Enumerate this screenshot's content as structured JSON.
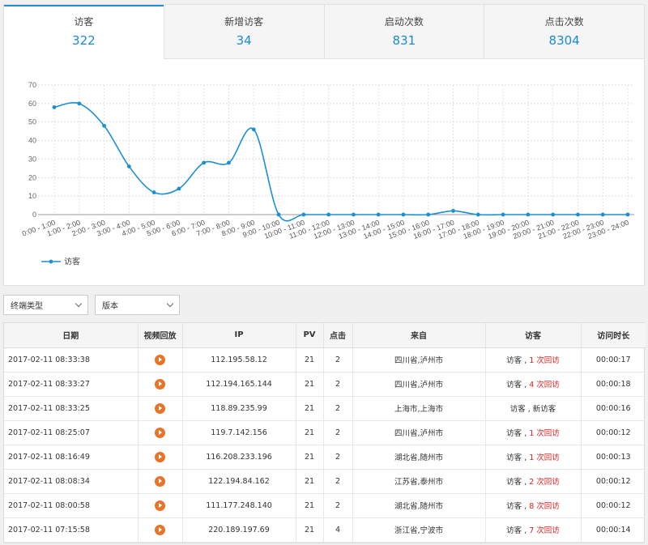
{
  "stats": {
    "tabs": [
      {
        "label": "访客",
        "value": "322"
      },
      {
        "label": "新增访客",
        "value": "34"
      },
      {
        "label": "启动次数",
        "value": "831"
      },
      {
        "label": "点击次数",
        "value": "8304"
      }
    ]
  },
  "chart_data": {
    "type": "line",
    "categories": [
      "0:00 - 1:00",
      "1:00 - 2:00",
      "2:00 - 3:00",
      "3:00 - 4:00",
      "4:00 - 5:00",
      "5:00 - 6:00",
      "6:00 - 7:00",
      "7:00 - 8:00",
      "8:00 - 9:00",
      "9:00 - 10:00",
      "10:00 - 11:00",
      "11:00 - 12:00",
      "12:00 - 13:00",
      "13:00 - 14:00",
      "14:00 - 15:00",
      "15:00 - 16:00",
      "16:00 - 17:00",
      "17:00 - 18:00",
      "18:00 - 19:00",
      "19:00 - 20:00",
      "20:00 - 21:00",
      "21:00 - 22:00",
      "22:00 - 23:00",
      "23:00 - 24:00"
    ],
    "series": [
      {
        "name": "访客",
        "values": [
          58,
          60,
          48,
          26,
          12,
          14,
          28,
          28,
          46,
          0,
          0,
          0,
          0,
          0,
          0,
          0,
          2,
          0,
          0,
          0,
          0,
          0,
          0,
          0
        ]
      }
    ],
    "ylim": [
      0,
      70
    ],
    "yticks": [
      0,
      10,
      20,
      30,
      40,
      50,
      60,
      70
    ],
    "grid": true,
    "legend": "bottom-left",
    "color": "#1a90d4"
  },
  "filters": {
    "terminal": "终端类型",
    "version": "版本"
  },
  "table": {
    "headers": [
      "日期",
      "视频回放",
      "IP",
      "PV",
      "点击",
      "来自",
      "访客",
      "访问时长"
    ],
    "rows": [
      {
        "date": "2017-02-11 08:33:38",
        "ip": "112.195.58.12",
        "pv": "21",
        "clicks": "2",
        "from": "四川省,泸州市",
        "visitor_prefix": "访客 , ",
        "visitor_highlight": "1 次回访",
        "duration": "00:00:17"
      },
      {
        "date": "2017-02-11 08:33:27",
        "ip": "112.194.165.144",
        "pv": "21",
        "clicks": "2",
        "from": "四川省,泸州市",
        "visitor_prefix": "访客 , ",
        "visitor_highlight": "4 次回访",
        "duration": "00:00:18"
      },
      {
        "date": "2017-02-11 08:33:25",
        "ip": "118.89.235.99",
        "pv": "21",
        "clicks": "2",
        "from": "上海市,上海市",
        "visitor_prefix": "访客 , 新访客",
        "visitor_highlight": "",
        "duration": "00:00:16"
      },
      {
        "date": "2017-02-11 08:25:07",
        "ip": "119.7.142.156",
        "pv": "21",
        "clicks": "2",
        "from": "四川省,泸州市",
        "visitor_prefix": "访客 , ",
        "visitor_highlight": "1 次回访",
        "duration": "00:00:12"
      },
      {
        "date": "2017-02-11 08:16:49",
        "ip": "116.208.233.196",
        "pv": "21",
        "clicks": "2",
        "from": "湖北省,随州市",
        "visitor_prefix": "访客 , ",
        "visitor_highlight": "1 次回访",
        "duration": "00:00:13"
      },
      {
        "date": "2017-02-11 08:08:34",
        "ip": "122.194.84.162",
        "pv": "21",
        "clicks": "2",
        "from": "江苏省,泰州市",
        "visitor_prefix": "访客 , ",
        "visitor_highlight": "2 次回访",
        "duration": "00:00:12"
      },
      {
        "date": "2017-02-11 08:00:58",
        "ip": "111.177.248.140",
        "pv": "21",
        "clicks": "2",
        "from": "湖北省,随州市",
        "visitor_prefix": "访客 , ",
        "visitor_highlight": "8 次回访",
        "duration": "00:00:12"
      },
      {
        "date": "2017-02-11 07:15:58",
        "ip": "220.189.197.69",
        "pv": "21",
        "clicks": "4",
        "from": "浙江省,宁波市",
        "visitor_prefix": "访客 , ",
        "visitor_highlight": "7 次回访",
        "duration": "00:00:14"
      }
    ]
  }
}
